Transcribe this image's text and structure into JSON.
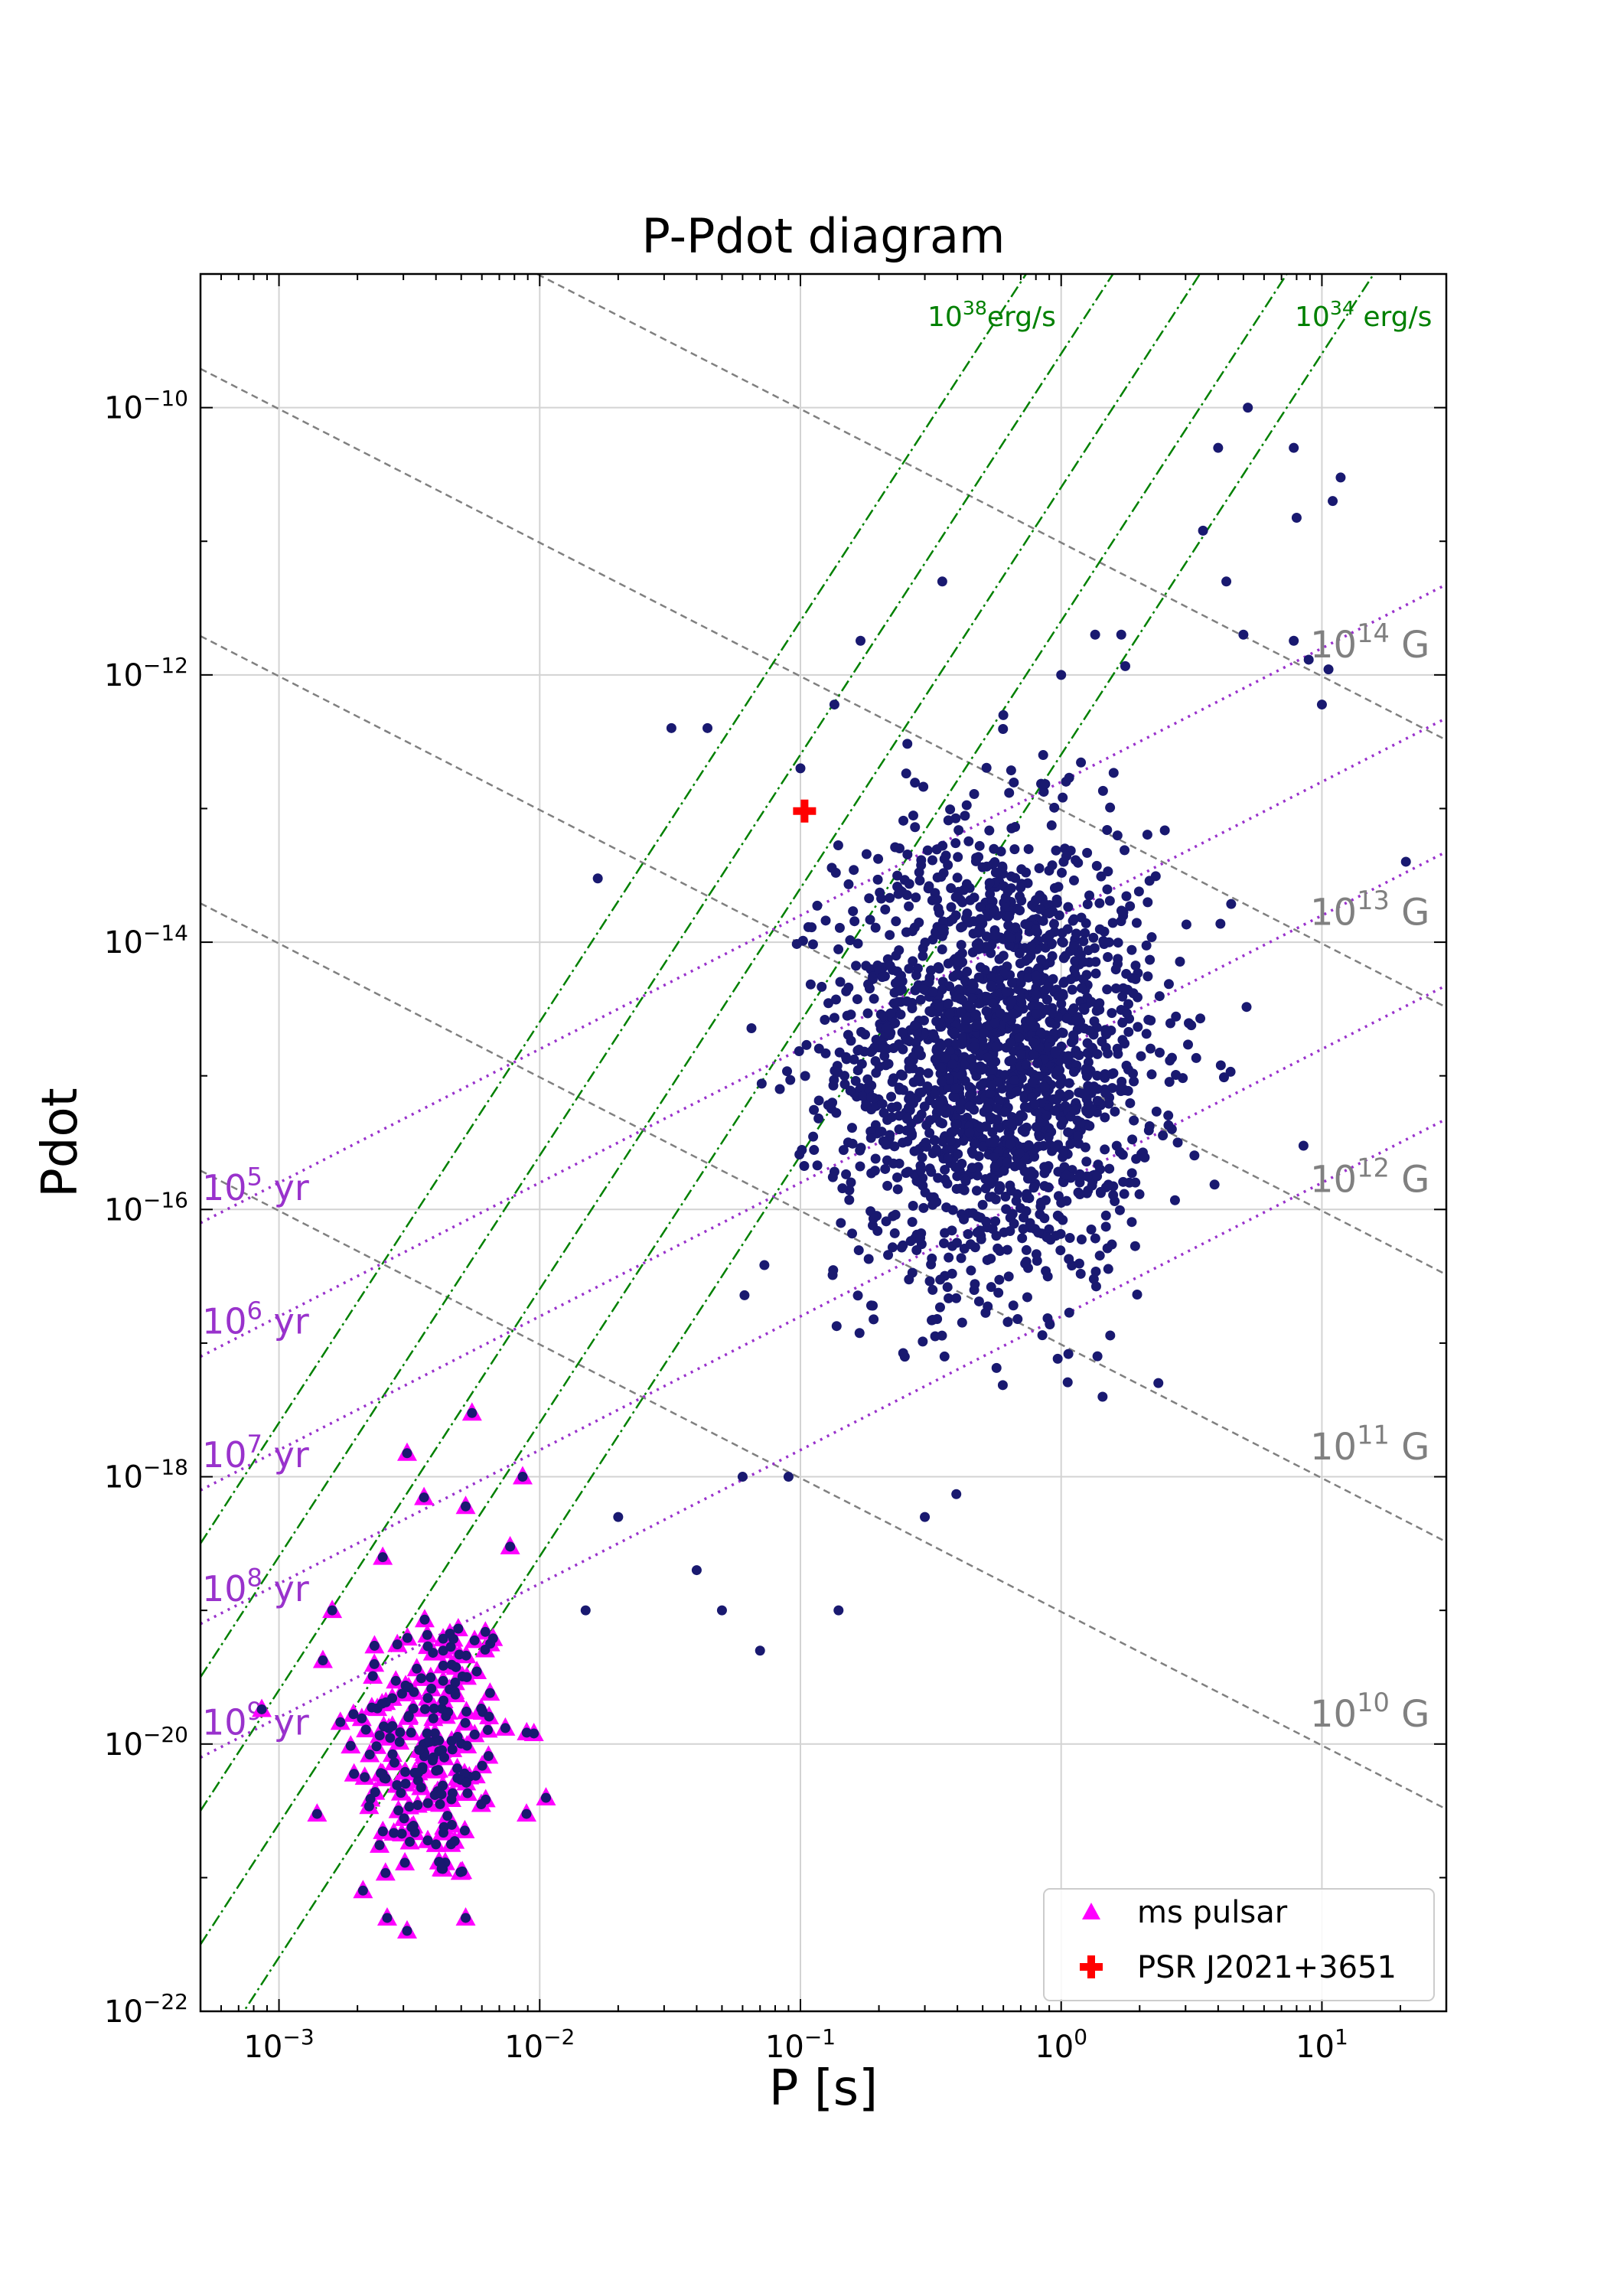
{
  "chart_data": {
    "type": "scatter",
    "title": "P-Pdot diagram",
    "xlabel": "P [s]",
    "ylabel": "Pdot",
    "xscale": "log",
    "yscale": "log",
    "xlim": [
      0.0005,
      30
    ],
    "ylim": [
      1e-22,
      1e-09
    ],
    "grid": true,
    "legend_placement": "lower-right",
    "x_tick_labels": [
      {
        "value": 0.001,
        "base": "10",
        "exp": "−3"
      },
      {
        "value": 0.01,
        "base": "10",
        "exp": "−2"
      },
      {
        "value": 0.1,
        "base": "10",
        "exp": "−1"
      },
      {
        "value": 1,
        "base": "10",
        "exp": "0"
      },
      {
        "value": 10,
        "base": "10",
        "exp": "1"
      }
    ],
    "y_tick_labels": [
      {
        "value": 1e-22,
        "base": "10",
        "exp": "−22"
      },
      {
        "value": 1e-20,
        "base": "10",
        "exp": "−20"
      },
      {
        "value": 1e-18,
        "base": "10",
        "exp": "−18"
      },
      {
        "value": 1e-16,
        "base": "10",
        "exp": "−16"
      },
      {
        "value": 1e-14,
        "base": "10",
        "exp": "−14"
      },
      {
        "value": 1e-12,
        "base": "10",
        "exp": "−12"
      },
      {
        "value": 1e-10,
        "base": "10",
        "exp": "−10"
      }
    ],
    "colors": {
      "normal": "#191970",
      "ms": "#ff00ff",
      "target": "#ff0000",
      "bfield": "#808080",
      "edot": "#008000",
      "age": "#9932cc",
      "grid": "#d3d3d3"
    },
    "series": [
      {
        "name": "ms pulsar",
        "marker": "triangle",
        "color": "#ff00ff",
        "cluster": {
          "count": 180,
          "logx_center": -2.42,
          "logx_sd": 0.16,
          "logy_center": -20.0,
          "logy_sd": 0.55
        },
        "points": [
          [
            0.0055,
            3e-18
          ],
          [
            0.0031,
            1.5e-18
          ],
          [
            0.0086,
            1e-18
          ],
          [
            0.0036,
            7e-19
          ],
          [
            0.0052,
            6e-19
          ],
          [
            0.0077,
            3e-19
          ],
          [
            0.0025,
            2.5e-19
          ],
          [
            0.0016,
            1e-19
          ],
          [
            0.0014,
            3e-21
          ],
          [
            0.0031,
            4e-22
          ],
          [
            0.0052,
            5e-22
          ],
          [
            0.0026,
            5e-22
          ],
          [
            0.0021,
            8e-22
          ],
          [
            0.0089,
            3e-21
          ],
          [
            0.0095,
            1.2e-20
          ]
        ]
      },
      {
        "name": "",
        "marker": "circle",
        "color": "#191970",
        "cluster": {
          "count": 1900,
          "logx_center": -0.25,
          "logx_sd": 0.3,
          "logy_center": -14.85,
          "logy_sd": 0.85
        },
        "points": [
          [
            0.0167,
            3e-14
          ],
          [
            0.032,
            4e-13
          ],
          [
            0.044,
            4e-13
          ],
          [
            0.1,
            2e-13
          ],
          [
            0.135,
            6e-13
          ],
          [
            0.17,
            1.8e-12
          ],
          [
            0.35,
            5e-12
          ],
          [
            0.6,
            5e-13
          ],
          [
            1.0,
            1e-12
          ],
          [
            1.35,
            2e-12
          ],
          [
            1.7,
            2e-12
          ],
          [
            3.5,
            1.2e-11
          ],
          [
            5.2,
            1e-10
          ],
          [
            4.0,
            5e-11
          ],
          [
            7.8,
            5e-11
          ],
          [
            8.0,
            1.5e-11
          ],
          [
            11.8,
            3e-11
          ],
          [
            11.0,
            2e-11
          ],
          [
            7.8,
            1.8e-12
          ],
          [
            8.9,
            1.3e-12
          ],
          [
            10.6,
            1.1e-12
          ],
          [
            4.3,
            5e-12
          ],
          [
            5.0,
            2e-12
          ],
          [
            10.0,
            6e-13
          ],
          [
            21.0,
            4e-14
          ],
          [
            8.5,
            3e-16
          ],
          [
            0.06,
            1e-18
          ],
          [
            0.09,
            1e-18
          ],
          [
            0.05,
            1e-19
          ],
          [
            0.14,
            1e-19
          ],
          [
            0.3,
            5e-19
          ],
          [
            0.015,
            1e-19
          ],
          [
            0.02,
            5e-19
          ],
          [
            0.04,
            2e-19
          ],
          [
            0.07,
            5e-20
          ]
        ]
      },
      {
        "name": "PSR J2021+3651",
        "marker": "cross",
        "color": "#ff0000",
        "points": [
          [
            0.1037,
            9.57e-14
          ]
        ]
      }
    ],
    "reference_lines": {
      "b_field": [
        {
          "base": "10",
          "exp": "10",
          "tail": " G",
          "B": 10000000000.0
        },
        {
          "base": "10",
          "exp": "11",
          "tail": " G",
          "B": 100000000000.0
        },
        {
          "base": "10",
          "exp": "12",
          "tail": " G",
          "B": 1000000000000.0
        },
        {
          "base": "10",
          "exp": "13",
          "tail": " G",
          "B": 10000000000000.0
        },
        {
          "base": "10",
          "exp": "14",
          "tail": " G",
          "B": 100000000000000.0
        }
      ],
      "edot": [
        {
          "base": "10",
          "exp": "38",
          "tail": "erg/s",
          "Edot": 1e+38
        },
        {
          "Edot": 1e+37
        },
        {
          "Edot": 1e+36
        },
        {
          "Edot": 1e+35
        },
        {
          "base": "10",
          "exp": "34",
          "tail": " erg/s",
          "Edot": 1e+34
        }
      ],
      "age": [
        {
          "base": "10",
          "exp": "5",
          "tail": " yr",
          "years": 100000.0
        },
        {
          "base": "10",
          "exp": "6",
          "tail": " yr",
          "years": 1000000.0
        },
        {
          "base": "10",
          "exp": "7",
          "tail": " yr",
          "years": 10000000.0
        },
        {
          "base": "10",
          "exp": "8",
          "tail": " yr",
          "years": 100000000.0
        },
        {
          "base": "10",
          "exp": "9",
          "tail": " yr",
          "years": 1000000000.0
        }
      ]
    }
  }
}
